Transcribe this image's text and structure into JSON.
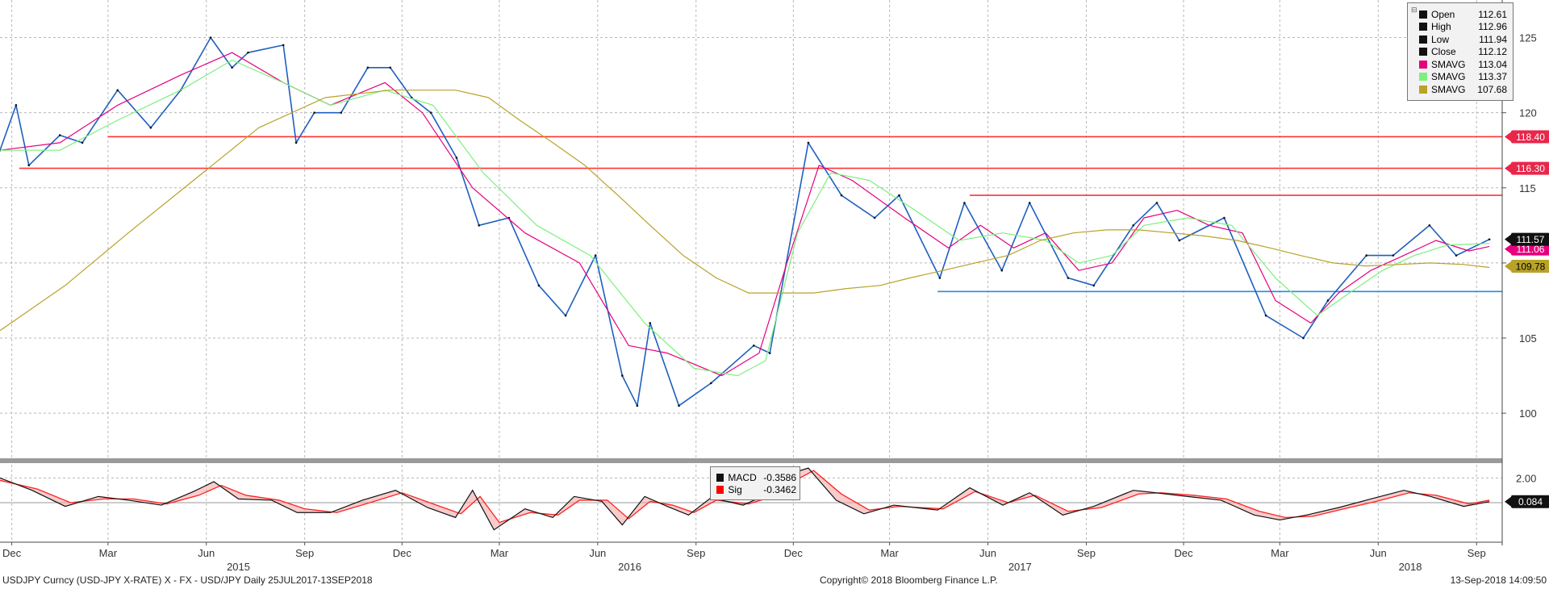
{
  "chart_data": [
    {
      "type": "line",
      "title": "",
      "ylim": [
        97,
        127.5
      ],
      "yticks": [
        100,
        105,
        110,
        115,
        120,
        125
      ],
      "grid": true,
      "legend_placement": "top-right",
      "x_domain": [
        "2014-11-20",
        "2018-09-25"
      ],
      "series": [
        {
          "name": "Close",
          "color": "#1f5fbf",
          "x": [
            "2014-11-20",
            "2014-12-05",
            "2014-12-17",
            "2015-01-15",
            "2015-02-05",
            "2015-03-10",
            "2015-04-10",
            "2015-05-08",
            "2015-06-05",
            "2015-06-25",
            "2015-07-10",
            "2015-08-12",
            "2015-08-24",
            "2015-09-10",
            "2015-10-05",
            "2015-10-30",
            "2015-11-20",
            "2015-12-10",
            "2015-12-28",
            "2016-01-21",
            "2016-02-11",
            "2016-03-10",
            "2016-04-07",
            "2016-05-02",
            "2016-05-30",
            "2016-06-24",
            "2016-07-08",
            "2016-07-20",
            "2016-08-16",
            "2016-09-15",
            "2016-10-25",
            "2016-11-09",
            "2016-12-15",
            "2017-01-15",
            "2017-02-15",
            "2017-03-10",
            "2017-04-17",
            "2017-05-10",
            "2017-06-14",
            "2017-07-10",
            "2017-08-15",
            "2017-09-08",
            "2017-10-15",
            "2017-11-06",
            "2017-11-27",
            "2018-01-08",
            "2018-02-16",
            "2018-03-23",
            "2018-04-15",
            "2018-05-21",
            "2018-06-15",
            "2018-07-19",
            "2018-08-13",
            "2018-09-13"
          ],
          "y": [
            117.5,
            120.5,
            116.5,
            118.5,
            118.0,
            121.5,
            119.0,
            121.5,
            125.0,
            123.0,
            124.0,
            124.5,
            118.0,
            120.0,
            120.0,
            123.0,
            123.0,
            121.0,
            120.0,
            117.0,
            112.5,
            113.0,
            108.5,
            106.5,
            110.5,
            102.5,
            100.5,
            106.0,
            100.5,
            102.0,
            104.5,
            104.0,
            118.0,
            114.5,
            113.0,
            114.5,
            109.0,
            114.0,
            109.5,
            114.0,
            109.0,
            108.5,
            112.5,
            114.0,
            111.5,
            113.0,
            106.5,
            105.0,
            107.5,
            110.5,
            110.5,
            112.5,
            110.5,
            111.57
          ]
        },
        {
          "name": "SMAVG",
          "color": "#e6007e",
          "x": [
            "2014-11-20",
            "2015-01-15",
            "2015-03-10",
            "2015-05-08",
            "2015-06-25",
            "2015-08-12",
            "2015-09-25",
            "2015-11-15",
            "2015-12-20",
            "2016-02-05",
            "2016-03-25",
            "2016-05-15",
            "2016-06-30",
            "2016-08-05",
            "2016-09-25",
            "2016-10-30",
            "2016-11-25",
            "2016-12-25",
            "2017-01-25",
            "2017-03-15",
            "2017-04-25",
            "2017-05-25",
            "2017-06-25",
            "2017-07-25",
            "2017-08-25",
            "2017-09-25",
            "2017-10-25",
            "2017-11-25",
            "2017-12-25",
            "2018-01-25",
            "2018-02-25",
            "2018-03-30",
            "2018-04-25",
            "2018-05-25",
            "2018-06-25",
            "2018-07-25",
            "2018-08-25",
            "2018-09-13"
          ],
          "y": [
            117.5,
            118.0,
            120.5,
            122.5,
            124.0,
            122.0,
            120.5,
            122.0,
            120.0,
            115.0,
            112.0,
            110.0,
            104.5,
            104.0,
            102.5,
            104.0,
            110.0,
            116.5,
            115.5,
            113.0,
            111.0,
            112.5,
            111.0,
            112.0,
            109.5,
            110.0,
            113.0,
            113.5,
            112.5,
            112.0,
            107.5,
            106.0,
            108.0,
            109.5,
            110.5,
            111.5,
            110.8,
            111.1
          ]
        },
        {
          "name": "SMAVG",
          "color": "#7cf07c",
          "x": [
            "2014-11-20",
            "2015-01-15",
            "2015-03-10",
            "2015-05-08",
            "2015-06-25",
            "2015-08-12",
            "2015-09-25",
            "2015-11-15",
            "2015-12-30",
            "2016-02-15",
            "2016-04-05",
            "2016-05-25",
            "2016-07-15",
            "2016-08-30",
            "2016-10-10",
            "2016-11-05",
            "2016-12-05",
            "2017-01-05",
            "2017-02-10",
            "2017-03-25",
            "2017-05-05",
            "2017-06-15",
            "2017-07-25",
            "2017-08-25",
            "2017-09-25",
            "2017-10-25",
            "2017-12-05",
            "2018-01-15",
            "2018-02-25",
            "2018-04-05",
            "2018-05-05",
            "2018-06-05",
            "2018-07-05",
            "2018-08-05",
            "2018-09-13"
          ],
          "y": [
            117.5,
            117.5,
            119.5,
            121.5,
            123.5,
            122.0,
            120.5,
            121.5,
            120.5,
            116.0,
            112.5,
            110.5,
            106.0,
            103.0,
            102.5,
            103.5,
            112.0,
            116.0,
            115.5,
            113.5,
            111.5,
            112.0,
            111.5,
            110.0,
            110.5,
            112.5,
            113.0,
            112.5,
            109.0,
            106.5,
            108.0,
            109.5,
            110.5,
            111.2,
            111.3
          ]
        },
        {
          "name": "SMAVG",
          "color": "#b8a228",
          "x": [
            "2014-11-20",
            "2015-01-20",
            "2015-03-20",
            "2015-05-20",
            "2015-07-20",
            "2015-09-20",
            "2015-11-20",
            "2016-01-20",
            "2016-02-20",
            "2016-03-20",
            "2016-04-20",
            "2016-05-20",
            "2016-06-20",
            "2016-07-20",
            "2016-08-20",
            "2016-09-20",
            "2016-10-20",
            "2016-11-20",
            "2016-12-20",
            "2017-01-20",
            "2017-02-20",
            "2017-03-20",
            "2017-04-20",
            "2017-05-20",
            "2017-06-20",
            "2017-07-20",
            "2017-08-20",
            "2017-09-20",
            "2017-10-20",
            "2017-11-20",
            "2017-12-20",
            "2018-01-20",
            "2018-02-20",
            "2018-03-20",
            "2018-04-20",
            "2018-05-20",
            "2018-06-20",
            "2018-07-20",
            "2018-08-20",
            "2018-09-13"
          ],
          "y": [
            105.5,
            108.5,
            112.0,
            115.5,
            119.0,
            121.0,
            121.5,
            121.5,
            121.0,
            119.5,
            118.0,
            116.5,
            114.5,
            112.5,
            110.5,
            109.0,
            108.0,
            108.0,
            108.0,
            108.3,
            108.5,
            109.0,
            109.5,
            110.0,
            110.5,
            111.5,
            112.0,
            112.2,
            112.2,
            112.0,
            111.8,
            111.5,
            111.0,
            110.5,
            110.0,
            109.8,
            109.9,
            110.0,
            109.9,
            109.7
          ]
        },
        {
          "name": "",
          "type": "hline",
          "color": "#ff3333",
          "y": 118.4,
          "x": [
            "2015-03-01",
            "2018-09-25"
          ]
        },
        {
          "name": "",
          "type": "hline",
          "color": "#ff3333",
          "y": 116.3,
          "x": [
            "2014-12-08",
            "2018-09-25"
          ]
        },
        {
          "name": "",
          "type": "hline",
          "color": "#ff3333",
          "y": 114.5,
          "x": [
            "2017-05-15",
            "2018-09-25"
          ]
        },
        {
          "name": "",
          "type": "hline",
          "color": "#1f8fe6",
          "y": 108.1,
          "x": [
            "2017-04-15",
            "2018-09-25"
          ]
        }
      ],
      "right_labels": [
        {
          "text": "118.40",
          "value": 118.4,
          "bg": "#e8274b",
          "fg": "#ffffff"
        },
        {
          "text": "116.30",
          "value": 116.3,
          "bg": "#e8274b",
          "fg": "#ffffff"
        },
        {
          "text": "111.57",
          "value": 111.57,
          "bg": "#111111",
          "fg": "#ffffff"
        },
        {
          "text": "111.06",
          "value": 111.06,
          "bg": "#e6007e",
          "fg": "#ffffff"
        },
        {
          "text": "109.78",
          "value": 109.78,
          "bg": "#b8a228",
          "fg": "#000000"
        }
      ],
      "legend": [
        {
          "name": "Open",
          "value": "112.61",
          "color": "#111111"
        },
        {
          "name": "High",
          "value": "112.96",
          "color": "#111111"
        },
        {
          "name": "Low",
          "value": "111.94",
          "color": "#111111"
        },
        {
          "name": "Close",
          "value": "112.12",
          "color": "#111111"
        },
        {
          "name": "SMAVG",
          "value": "113.04",
          "color": "#e6007e"
        },
        {
          "name": "SMAVG",
          "value": "113.37",
          "color": "#7cf07c"
        },
        {
          "name": "SMAVG",
          "value": "107.68",
          "color": "#b8a228"
        }
      ]
    },
    {
      "type": "line",
      "title": "",
      "ylim": [
        -3.2,
        3.2
      ],
      "yticks": [
        2.0
      ],
      "zero_line": true,
      "legend_placement": "top-center",
      "series": [
        {
          "name": "MACD",
          "color": "#111111",
          "x": [
            "2014-11-20",
            "2014-12-20",
            "2015-01-20",
            "2015-02-20",
            "2015-03-20",
            "2015-04-20",
            "2015-05-20",
            "2015-06-08",
            "2015-07-01",
            "2015-08-01",
            "2015-08-25",
            "2015-09-25",
            "2015-10-25",
            "2015-11-25",
            "2015-12-25",
            "2016-01-20",
            "2016-02-05",
            "2016-02-25",
            "2016-03-25",
            "2016-04-20",
            "2016-05-10",
            "2016-06-05",
            "2016-06-24",
            "2016-07-15",
            "2016-08-05",
            "2016-08-25",
            "2016-09-15",
            "2016-10-15",
            "2016-11-15",
            "2016-11-30",
            "2016-12-15",
            "2017-01-10",
            "2017-02-05",
            "2017-03-05",
            "2017-04-15",
            "2017-05-15",
            "2017-06-15",
            "2017-07-10",
            "2017-08-10",
            "2017-09-08",
            "2017-10-15",
            "2017-11-05",
            "2017-12-05",
            "2018-01-05",
            "2018-02-05",
            "2018-03-01",
            "2018-03-26",
            "2018-04-25",
            "2018-05-25",
            "2018-06-25",
            "2018-07-20",
            "2018-08-20",
            "2018-09-13"
          ],
          "y": [
            2.0,
            1.0,
            -0.3,
            0.5,
            0.2,
            -0.2,
            0.9,
            1.7,
            0.3,
            0.2,
            -0.8,
            -0.8,
            0.2,
            1.0,
            -0.4,
            -1.2,
            1.0,
            -2.2,
            -0.5,
            -1.2,
            0.5,
            0.1,
            -1.8,
            0.5,
            -0.3,
            -1.0,
            0.4,
            -0.2,
            1.0,
            2.4,
            2.8,
            0.2,
            -0.9,
            -0.2,
            -0.6,
            1.2,
            -0.2,
            0.8,
            -1.0,
            -0.3,
            1.0,
            0.8,
            0.5,
            0.2,
            -1.0,
            -1.4,
            -1.0,
            -0.4,
            0.3,
            1.0,
            0.5,
            -0.3,
            0.084
          ]
        },
        {
          "name": "Sig",
          "color": "#ff2222",
          "x": [
            "2014-11-20",
            "2014-12-25",
            "2015-01-25",
            "2015-02-25",
            "2015-03-25",
            "2015-04-25",
            "2015-05-25",
            "2015-06-15",
            "2015-07-08",
            "2015-08-08",
            "2015-09-01",
            "2015-10-01",
            "2015-11-01",
            "2015-12-01",
            "2015-12-30",
            "2016-01-25",
            "2016-02-12",
            "2016-03-01",
            "2016-03-30",
            "2016-04-25",
            "2016-05-15",
            "2016-06-10",
            "2016-06-30",
            "2016-07-20",
            "2016-08-10",
            "2016-08-30",
            "2016-09-20",
            "2016-10-20",
            "2016-11-20",
            "2016-12-05",
            "2016-12-20",
            "2017-01-15",
            "2017-02-10",
            "2017-03-10",
            "2017-04-20",
            "2017-05-20",
            "2017-06-20",
            "2017-07-15",
            "2017-08-15",
            "2017-09-15",
            "2017-10-20",
            "2017-11-10",
            "2017-12-10",
            "2018-01-10",
            "2018-02-10",
            "2018-03-06",
            "2018-04-01",
            "2018-04-30",
            "2018-05-30",
            "2018-06-30",
            "2018-07-25",
            "2018-08-25",
            "2018-09-13"
          ],
          "y": [
            1.8,
            1.1,
            0.0,
            0.3,
            0.3,
            -0.1,
            0.6,
            1.4,
            0.6,
            0.2,
            -0.5,
            -0.8,
            0.0,
            0.8,
            -0.1,
            -0.9,
            0.5,
            -1.6,
            -0.8,
            -1.0,
            0.2,
            0.2,
            -1.3,
            0.1,
            -0.2,
            -0.8,
            0.2,
            -0.1,
            0.7,
            1.9,
            2.6,
            0.7,
            -0.6,
            -0.3,
            -0.5,
            0.9,
            0.0,
            0.6,
            -0.7,
            -0.4,
            0.7,
            0.8,
            0.6,
            0.3,
            -0.7,
            -1.2,
            -1.1,
            -0.5,
            0.1,
            0.8,
            0.6,
            -0.1,
            0.2
          ]
        }
      ],
      "right_labels": [
        {
          "text": "0.084",
          "value": 0.084,
          "bg": "#111111",
          "fg": "#ffffff"
        }
      ],
      "legend": [
        {
          "name": "MACD",
          "value": "-0.3586",
          "color": "#111111"
        },
        {
          "name": "Sig",
          "value": "-0.3462",
          "color": "#ff0000"
        }
      ]
    }
  ],
  "x_axis": {
    "month_ticks": [
      {
        "label": "Dec",
        "date": "2014-12-01"
      },
      {
        "label": "Mar",
        "date": "2015-03-01"
      },
      {
        "label": "Jun",
        "date": "2015-06-01"
      },
      {
        "label": "Sep",
        "date": "2015-09-01"
      },
      {
        "label": "Dec",
        "date": "2015-12-01"
      },
      {
        "label": "Mar",
        "date": "2016-03-01"
      },
      {
        "label": "Jun",
        "date": "2016-06-01"
      },
      {
        "label": "Sep",
        "date": "2016-09-01"
      },
      {
        "label": "Dec",
        "date": "2016-12-01"
      },
      {
        "label": "Mar",
        "date": "2017-03-01"
      },
      {
        "label": "Jun",
        "date": "2017-06-01"
      },
      {
        "label": "Sep",
        "date": "2017-09-01"
      },
      {
        "label": "Dec",
        "date": "2017-12-01"
      },
      {
        "label": "Mar",
        "date": "2018-03-01"
      },
      {
        "label": "Jun",
        "date": "2018-06-01"
      },
      {
        "label": "Sep",
        "date": "2018-09-01"
      }
    ],
    "year_ticks": [
      {
        "label": "2015",
        "date": "2015-07-01"
      },
      {
        "label": "2016",
        "date": "2016-07-01"
      },
      {
        "label": "2017",
        "date": "2017-07-01"
      },
      {
        "label": "2018",
        "date": "2018-07-01"
      }
    ]
  },
  "footer": {
    "left": "USDJPY Curncy (USD-JPY X-RATE) X - FX - USD/JPY  Daily 25JUL2017-13SEP2018",
    "center": "Copyright© 2018 Bloomberg Finance L.P.",
    "right": "13-Sep-2018 14:09:50"
  }
}
